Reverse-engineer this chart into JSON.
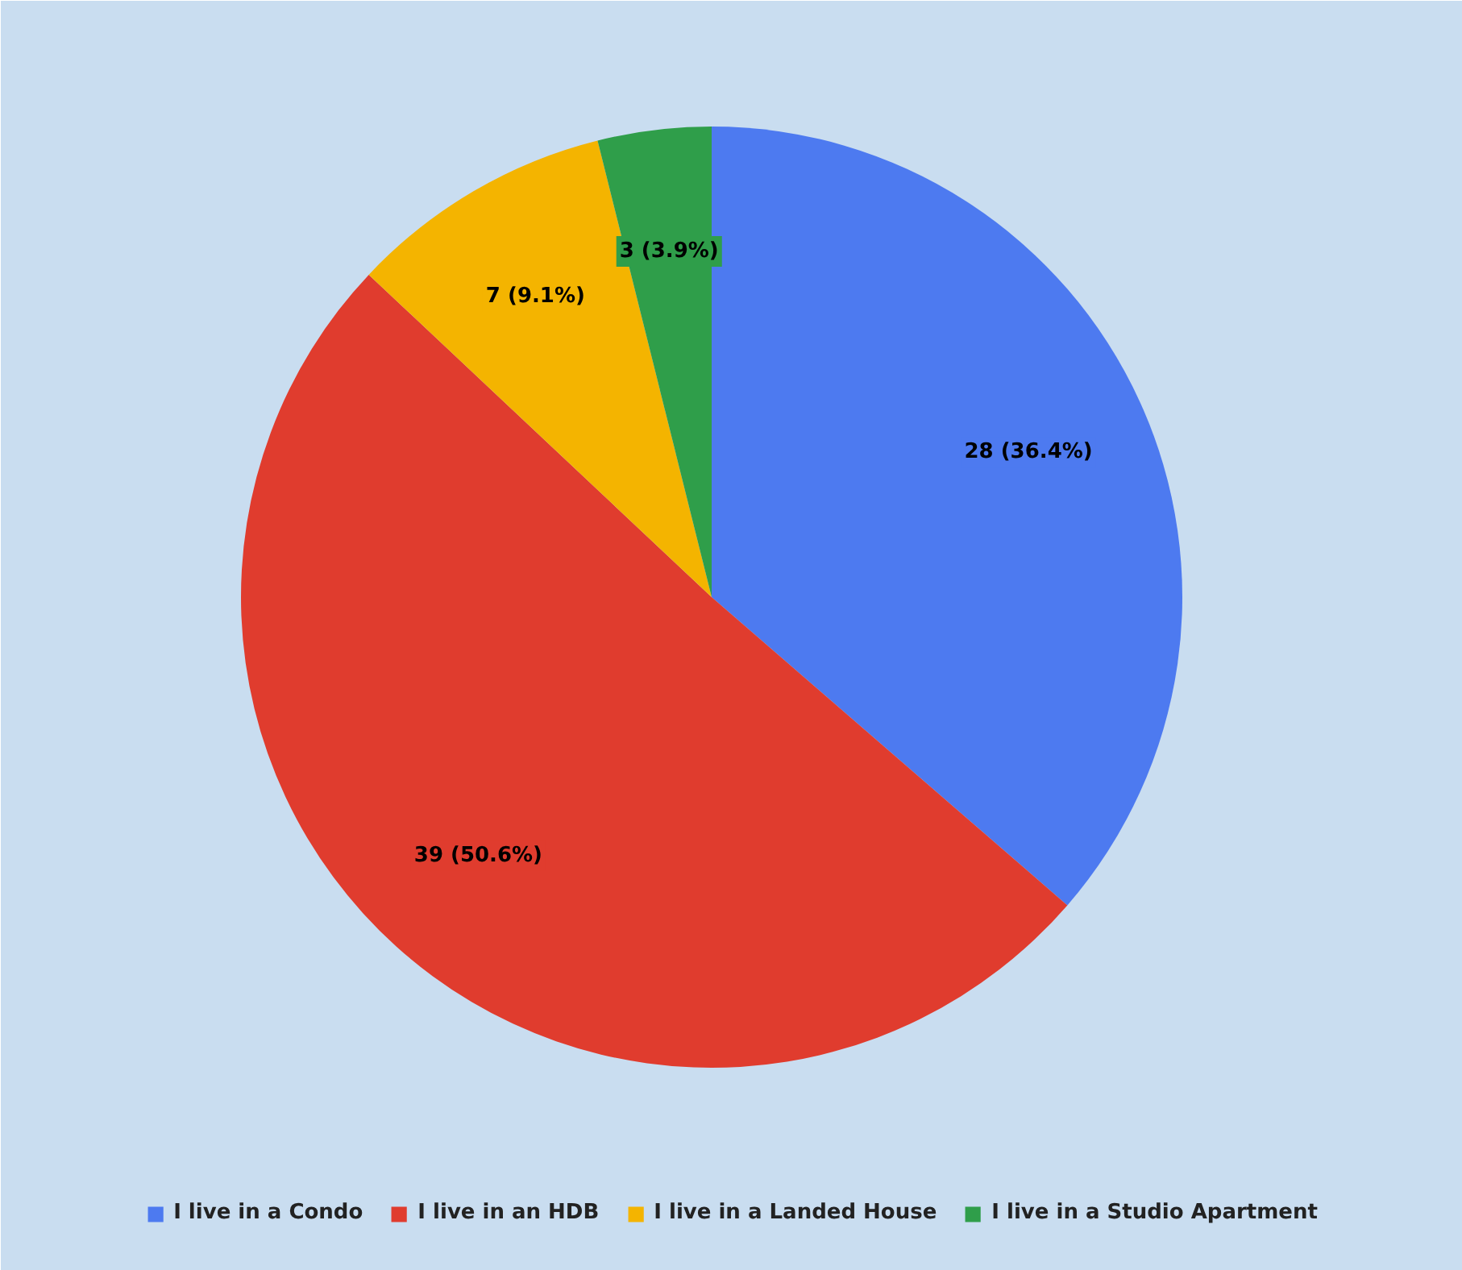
{
  "chart_data": {
    "type": "pie",
    "categories": [
      "I live in a Condo",
      "I live in an HDB",
      "I live in a Landed House",
      "I live in a Studio Apartment"
    ],
    "values": [
      28,
      39,
      7,
      3
    ],
    "colors": [
      "#4d7af0",
      "#e03c2e",
      "#f4b400",
      "#2f9e4a"
    ],
    "value_labels": [
      "28 (36.4%)",
      "39 (50.6%)",
      "7 (9.1%)",
      "3 (3.9%)"
    ],
    "legend": "bottom"
  }
}
